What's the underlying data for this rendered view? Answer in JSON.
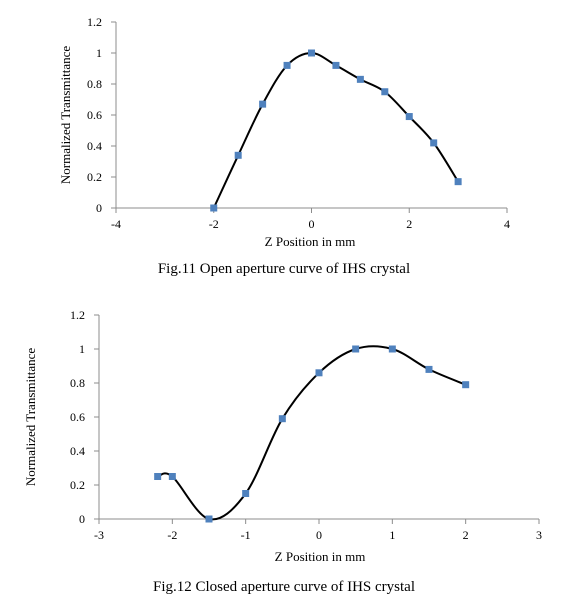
{
  "chart_data": [
    {
      "type": "scatter",
      "title": "Fig.11 Open aperture curve of IHS crystal",
      "xlabel": "Z Position in mm",
      "ylabel": "Normalized Transmittance",
      "xlim": [
        -4,
        4
      ],
      "ylim": [
        0,
        1.2
      ],
      "x_ticks": [
        -4,
        -2,
        0,
        2,
        4
      ],
      "y_ticks": [
        0,
        0.2,
        0.4,
        0.6,
        0.8,
        1,
        1.2
      ],
      "grid": false,
      "smooth_line": true,
      "marker_color": "#4f81bd",
      "line_color": "#000000",
      "series": [
        {
          "x": [
            -2,
            -1.5,
            -1,
            -0.5,
            0,
            0.5,
            1,
            1.5,
            2,
            2.5,
            3
          ],
          "y": [
            0,
            0.34,
            0.67,
            0.92,
            1.0,
            0.92,
            0.83,
            0.75,
            0.59,
            0.42,
            0.17
          ]
        }
      ]
    },
    {
      "type": "scatter",
      "title": "Fig.12 Closed aperture curve of IHS crystal",
      "xlabel": "Z Position in mm",
      "ylabel": "Normalized Transmittance",
      "xlim": [
        -3,
        3
      ],
      "ylim": [
        0,
        1.2
      ],
      "x_ticks": [
        -3,
        -2,
        -1,
        0,
        1,
        2,
        3
      ],
      "y_ticks": [
        0,
        0.2,
        0.4,
        0.6,
        0.8,
        1,
        1.2
      ],
      "grid": false,
      "smooth_line": true,
      "marker_color": "#4f81bd",
      "line_color": "#000000",
      "series": [
        {
          "x": [
            -2.2,
            -2,
            -1.5,
            -1,
            -0.5,
            0,
            0.5,
            1,
            1.5,
            2
          ],
          "y": [
            0.25,
            0.25,
            0,
            0.15,
            0.59,
            0.86,
            1.0,
            1.0,
            0.88,
            0.79
          ]
        }
      ]
    }
  ]
}
